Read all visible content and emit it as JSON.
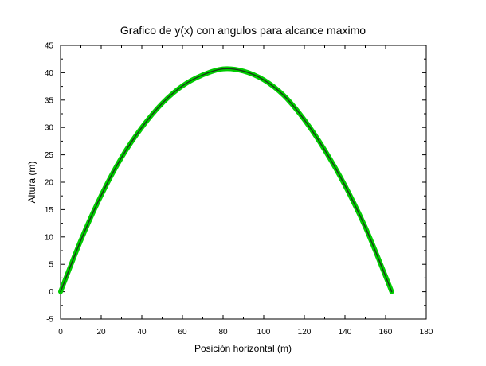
{
  "chart_data": {
    "type": "line",
    "title": "Grafico de y(x) con angulos para alcance maximo",
    "xlabel": "Posición horizontal (m)",
    "ylabel": "Altura (m)",
    "xlim": [
      0,
      180
    ],
    "ylim": [
      -5,
      45
    ],
    "xticks": [
      0,
      20,
      40,
      60,
      80,
      100,
      120,
      140,
      160,
      180
    ],
    "xtick_labels": [
      "0",
      "20",
      "40",
      "60",
      "80",
      "100",
      "120",
      "140",
      "160",
      "180"
    ],
    "yticks": [
      -5,
      0,
      5,
      10,
      15,
      20,
      25,
      30,
      35,
      40,
      45
    ],
    "ytick_labels": [
      "-5",
      "0",
      "5",
      "10",
      "15",
      "20",
      "25",
      "30",
      "35",
      "40",
      "45"
    ],
    "grid": false,
    "series": [
      {
        "color": "#00cc00",
        "x": [
          0,
          10,
          20,
          30,
          40,
          50,
          60,
          70,
          80,
          90,
          100,
          110,
          120,
          130,
          140,
          150,
          160,
          163
        ],
        "y": [
          0,
          9.4,
          17.6,
          24.5,
          30.0,
          34.4,
          37.6,
          39.6,
          40.7,
          40.3,
          38.7,
          35.8,
          31.4,
          25.9,
          19.4,
          11.8,
          2.8,
          0
        ]
      }
    ]
  }
}
